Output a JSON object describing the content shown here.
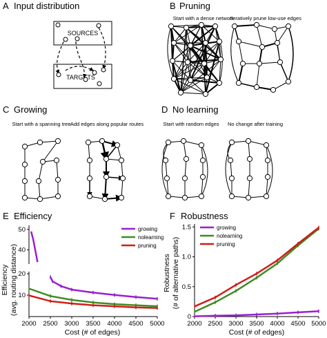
{
  "panels": {
    "A": {
      "letter": "A",
      "title": "Input distribution",
      "sources_label": "SOURCES",
      "targets_label": "TARGETS"
    },
    "B": {
      "letter": "B",
      "title": "Pruning",
      "sub_left": "Start with a dense network",
      "sub_right": "Iteratively prune low-use edges"
    },
    "C": {
      "letter": "C",
      "title": "Growing",
      "sub_left": "Start with a spanning tree",
      "sub_right": "Add edges along popular routes"
    },
    "D": {
      "letter": "D",
      "title": "No learning",
      "sub_left": "Start with random edges",
      "sub_right": "No change after training"
    }
  },
  "colors": {
    "growing": "#9a1fd0",
    "nolearning": "#3f8a23",
    "pruning": "#cf1d17",
    "axis": "#000000"
  },
  "chart_data": [
    {
      "type": "line",
      "panel_letter": "E",
      "title": "Efficiency",
      "xlabel": "Cost (# of edges)",
      "ylabel": "Efficiency",
      "ylabel2": "(avg. routing distance)",
      "xlim": [
        2000,
        5000
      ],
      "xticks": [
        "2000",
        "2500",
        "3000",
        "3500",
        "4000",
        "4500",
        "5000"
      ],
      "upper": {
        "ylim": [
          33,
          52
        ],
        "yticks": [
          "50",
          "40"
        ]
      },
      "lower": {
        "ylim": [
          0,
          21
        ],
        "yticks": [
          "20",
          "10"
        ]
      },
      "legend": "top-right",
      "series": [
        {
          "name": "growing",
          "x": [
            2050,
            2100,
            2200,
            2500,
            2550,
            2750,
            3000,
            3500,
            4000,
            4500,
            5000
          ],
          "y": [
            49,
            45,
            34,
            18.5,
            16.5,
            14.2,
            12.6,
            11.2,
            10.1,
            9.1,
            8.3
          ]
        },
        {
          "name": "nolearning",
          "x": [
            2000,
            2500,
            3000,
            3500,
            4000,
            4500,
            5000
          ],
          "y": [
            13.1,
            9.6,
            7.8,
            6.6,
            5.8,
            5.3,
            4.8
          ]
        },
        {
          "name": "pruning",
          "x": [
            2000,
            2500,
            3000,
            3500,
            4000,
            4500,
            5000
          ],
          "y": [
            9.9,
            7.2,
            6.1,
            5.3,
            4.8,
            4.3,
            4.0
          ]
        }
      ]
    },
    {
      "type": "line",
      "panel_letter": "F",
      "title": "Robustness",
      "xlabel": "Cost (# of edges)",
      "ylabel": "Robustness",
      "ylabel2": "(# of alternative paths)",
      "xlim": [
        2000,
        5000
      ],
      "ylim": [
        0,
        1.55
      ],
      "xticks": [
        "2000",
        "2500",
        "3000",
        "3500",
        "4000",
        "4500",
        "5000"
      ],
      "yticks": [
        "0",
        "0.5",
        "1.0",
        "1.5"
      ],
      "legend": "top-left",
      "series": [
        {
          "name": "growing",
          "x": [
            2000,
            2500,
            3000,
            3500,
            4000,
            4500,
            5000
          ],
          "y": [
            0.005,
            0.015,
            0.02,
            0.035,
            0.05,
            0.07,
            0.09
          ]
        },
        {
          "name": "nolearning",
          "x": [
            2000,
            2500,
            3000,
            3500,
            4000,
            4500,
            5000
          ],
          "y": [
            0.08,
            0.24,
            0.43,
            0.65,
            0.89,
            1.19,
            1.47
          ]
        },
        {
          "name": "pruning",
          "x": [
            2000,
            2500,
            3000,
            3500,
            4000,
            4500,
            5000
          ],
          "y": [
            0.17,
            0.32,
            0.53,
            0.72,
            0.94,
            1.22,
            1.49
          ]
        }
      ]
    }
  ]
}
